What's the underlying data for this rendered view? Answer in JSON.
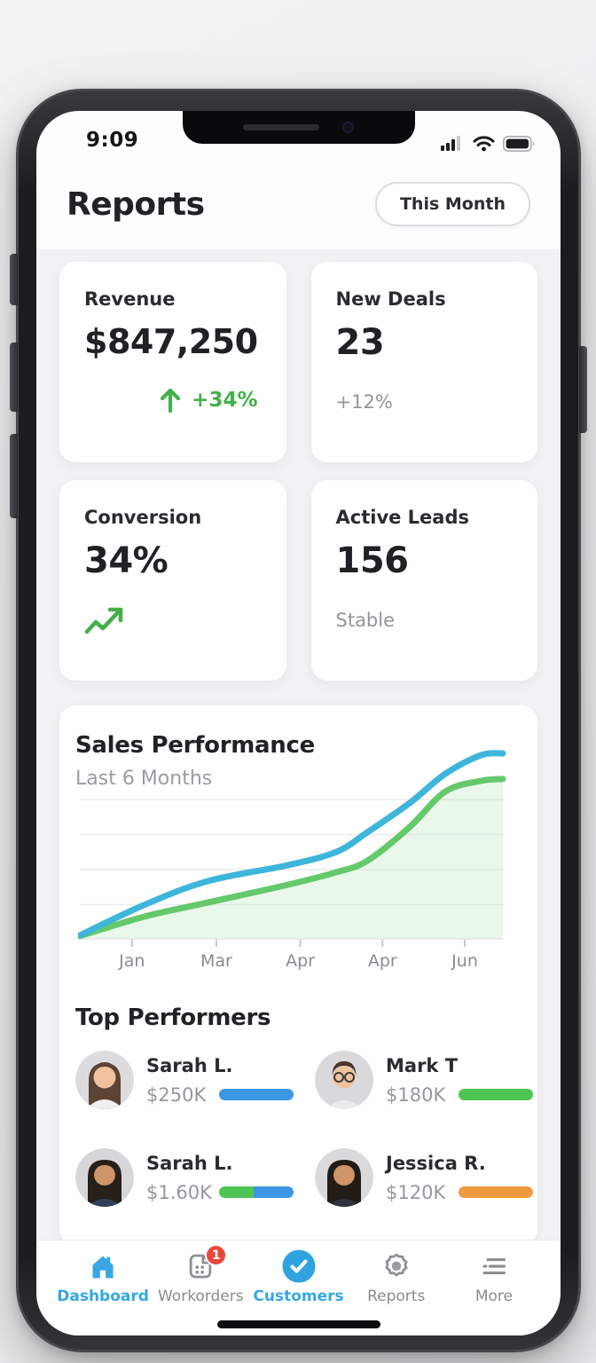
{
  "status_bar": {
    "time": "9:09"
  },
  "header": {
    "title": "Reports",
    "period_button": "This Month"
  },
  "stats": [
    {
      "label": "Revenue",
      "value": "$847,250",
      "delta": "+34%"
    },
    {
      "label": "New Deals",
      "value": "23",
      "delta": "+12%"
    },
    {
      "label": "Conversion",
      "value": "34%",
      "delta": ""
    },
    {
      "label": "Active Leads",
      "value": "156",
      "delta": "Stable"
    }
  ],
  "chart_data": {
    "type": "line",
    "title": "Sales Performance",
    "subtitle": "Last 6 Months",
    "x_tick_labels": [
      "Jan",
      "Mar",
      "Apr",
      "Apr",
      "Jun"
    ],
    "x_tick_pos_pct": [
      12.3,
      32.2,
      52.0,
      71.4,
      90.8
    ],
    "ylim": [
      0,
      100
    ],
    "grid": true,
    "legend": false,
    "gridline_values": [
      18,
      37,
      56,
      75
    ],
    "series": [
      {
        "name": "upper",
        "color": "#3eb5da",
        "x_pct": [
          0,
          15.1,
          30.2,
          49.0,
          60.5,
          67.8,
          77.8,
          86.2,
          94.6,
          99.8
        ],
        "values": [
          1.4,
          17.8,
          30.8,
          39.4,
          46.6,
          57.2,
          73.1,
          88.9,
          99.0,
          100.0
        ]
      },
      {
        "name": "lower",
        "color": "#64c96a",
        "fill": "rgba(100,201,106,0.13)",
        "x_pct": [
          0,
          15.1,
          30.2,
          49.0,
          60.5,
          67.8,
          77.8,
          86.2,
          94.6,
          99.8
        ],
        "values": [
          1.0,
          11.5,
          19.2,
          28.8,
          35.6,
          41.8,
          60.1,
          79.3,
          85.1,
          86.1
        ]
      }
    ]
  },
  "top_performers": {
    "title": "Top Performers",
    "people": [
      {
        "name": "Sarah L.",
        "amount": "$250K",
        "bar": [
          {
            "color": "#3b97e3",
            "pct": 100
          }
        ]
      },
      {
        "name": "Mark T",
        "amount": "$180K",
        "bar": [
          {
            "color": "#4ec455",
            "pct": 100
          }
        ]
      },
      {
        "name": "Sarah L.",
        "amount": "$1.60K",
        "bar": [
          {
            "color": "#4ec455",
            "pct": 46
          },
          {
            "color": "#3b97e3",
            "pct": 54
          }
        ]
      },
      {
        "name": "Jessica R.",
        "amount": "$120K",
        "bar": [
          {
            "color": "#f0993f",
            "pct": 100
          }
        ]
      }
    ]
  },
  "tab_bar": {
    "items": [
      {
        "label": "Dashboard",
        "icon": "home-icon",
        "active": true,
        "badge": ""
      },
      {
        "label": "Workorders",
        "icon": "workorders-icon",
        "active": false,
        "badge": "1"
      },
      {
        "label": "Customers",
        "icon": "customers-check-icon",
        "active": true,
        "badge": ""
      },
      {
        "label": "Reports",
        "icon": "reports-badge-icon",
        "active": false,
        "badge": ""
      },
      {
        "label": "More",
        "icon": "more-menu-icon",
        "active": false,
        "badge": ""
      }
    ]
  },
  "colors": {
    "accent_blue": "#35a8e0",
    "positive_green": "#43b04a",
    "chart_blue": "#3eb5da",
    "chart_green": "#64c96a",
    "bar_blue": "#3b97e3",
    "bar_green": "#4ec455",
    "bar_orange": "#f0993f",
    "badge_red": "#e8473d",
    "text_dark": "#222226",
    "text_gray": "#97979d"
  }
}
